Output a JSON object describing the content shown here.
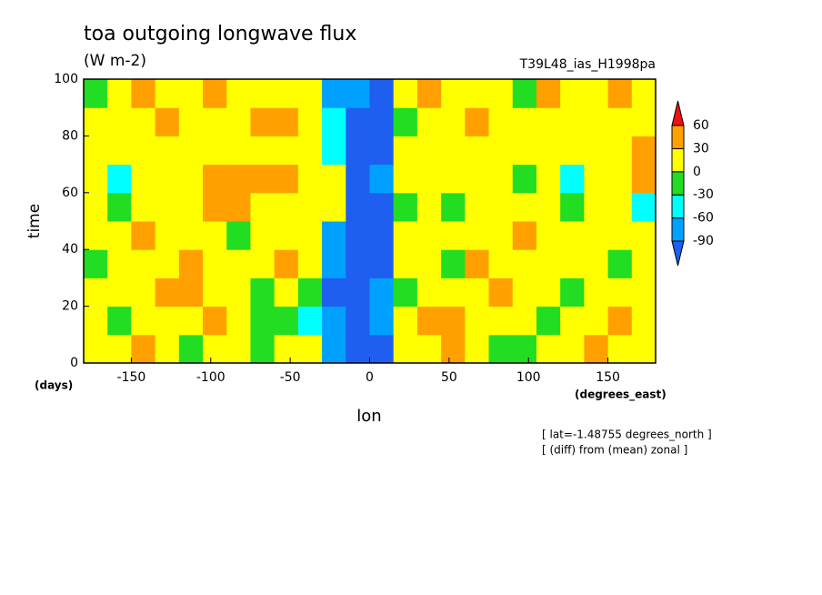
{
  "chart_data": {
    "type": "heatmap",
    "title": "toa outgoing longwave flux",
    "subtitle": "(W m-2)",
    "experiment": "T39L48_ias_H1998pa",
    "x_label": "lon",
    "y_label": "time",
    "x_unit": "(degrees_east)",
    "y_unit": "(days)",
    "notes": [
      "[ lat=-1.48755 degrees_north ]",
      "[ (diff) from (mean) zonal ]"
    ],
    "xlim": [
      -180,
      180
    ],
    "ylim": [
      0,
      100
    ],
    "xticks": [
      -150,
      -100,
      -50,
      0,
      50,
      100,
      150
    ],
    "yticks": [
      0,
      20,
      40,
      60,
      80,
      100
    ],
    "levels": [
      -90,
      -60,
      -30,
      0,
      30,
      60
    ],
    "colors": [
      "#1e5ff0",
      "#00a0ff",
      "#00ffff",
      "#22dd22",
      "#ffff00",
      "#ffa000",
      "#f01010"
    ],
    "z": [
      [
        15,
        15,
        40,
        15,
        -15,
        15,
        15,
        -15,
        15,
        15,
        -75,
        -100,
        -100,
        15,
        15,
        40,
        15,
        -15,
        -15,
        15,
        15,
        40,
        15,
        15
      ],
      [
        15,
        -15,
        15,
        15,
        15,
        40,
        15,
        -15,
        -15,
        -45,
        -75,
        -100,
        -75,
        15,
        40,
        40,
        15,
        15,
        15,
        -15,
        15,
        15,
        40,
        15
      ],
      [
        15,
        15,
        15,
        40,
        40,
        15,
        15,
        -15,
        15,
        -15,
        -100,
        -100,
        -75,
        -15,
        15,
        15,
        15,
        40,
        15,
        15,
        -15,
        15,
        15,
        15
      ],
      [
        -15,
        15,
        15,
        15,
        40,
        15,
        15,
        15,
        40,
        15,
        -75,
        -100,
        -100,
        15,
        15,
        -15,
        40,
        15,
        15,
        15,
        15,
        15,
        -15,
        15
      ],
      [
        15,
        15,
        40,
        15,
        15,
        15,
        -15,
        15,
        15,
        15,
        -75,
        -100,
        -100,
        15,
        15,
        15,
        15,
        15,
        40,
        15,
        15,
        15,
        15,
        15
      ],
      [
        15,
        -15,
        15,
        15,
        15,
        40,
        40,
        15,
        15,
        15,
        15,
        -100,
        -100,
        -15,
        15,
        -15,
        15,
        15,
        15,
        15,
        -15,
        15,
        15,
        -45
      ],
      [
        15,
        -45,
        15,
        15,
        15,
        40,
        40,
        40,
        40,
        15,
        15,
        -100,
        -75,
        15,
        15,
        15,
        15,
        15,
        -15,
        15,
        -45,
        15,
        15,
        40
      ],
      [
        15,
        15,
        15,
        15,
        15,
        15,
        15,
        15,
        15,
        15,
        -45,
        -100,
        -100,
        15,
        15,
        15,
        15,
        15,
        15,
        15,
        15,
        15,
        15,
        40
      ],
      [
        15,
        15,
        15,
        40,
        15,
        15,
        15,
        40,
        40,
        15,
        -45,
        -100,
        -100,
        -15,
        15,
        15,
        40,
        15,
        15,
        15,
        15,
        15,
        15,
        15
      ],
      [
        -15,
        15,
        40,
        15,
        15,
        40,
        15,
        15,
        15,
        15,
        -75,
        -75,
        -100,
        15,
        40,
        15,
        15,
        15,
        -15,
        40,
        15,
        15,
        40,
        15
      ]
    ]
  }
}
